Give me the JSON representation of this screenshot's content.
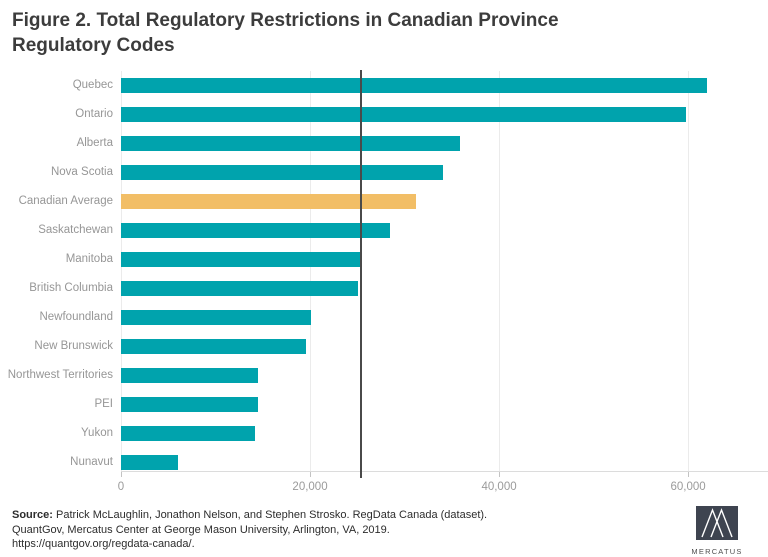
{
  "figure": {
    "title": "Figure 2. Total Regulatory Restrictions in Canadian Province Regulatory Codes"
  },
  "chart_data": {
    "type": "bar",
    "orientation": "horizontal",
    "title": "Figure 2. Total Regulatory Restrictions in Canadian Province Regulatory Codes",
    "categories": [
      "Quebec",
      "Ontario",
      "Alberta",
      "Nova Scotia",
      "Canadian Average",
      "Saskatchewan",
      "Manitoba",
      "British Columbia",
      "Newfoundland",
      "New Brunswick",
      "Northwest Territories",
      "PEI",
      "Yukon",
      "Nunavut"
    ],
    "values": [
      62000,
      59800,
      35900,
      34100,
      31200,
      28500,
      25500,
      25100,
      20100,
      19600,
      14500,
      14450,
      14200,
      6000
    ],
    "highlight_category": "Canadian Average",
    "bar_color": "#00a3ad",
    "highlight_color": "#f2be66",
    "reference_line": {
      "value": 25300,
      "color": "#4a4a4a",
      "label": ""
    },
    "xlim": [
      0,
      67400
    ],
    "xticks": [
      {
        "value": 0,
        "label": "0"
      },
      {
        "value": 20000,
        "label": "20,000"
      },
      {
        "value": 40000,
        "label": "40,000"
      },
      {
        "value": 60000,
        "label": "60,000"
      }
    ],
    "grid": "vertical",
    "legend": "none",
    "xlabel": "",
    "ylabel": ""
  },
  "footer": {
    "source_label": "Source:",
    "source_line1": " Patrick McLaughlin, Jonathon Nelson, and Stephen Strosko. RegData Canada (dataset).",
    "source_line2": "QuantGov, Mercatus Center at George Mason University, Arlington, VA, 2019.",
    "source_line3": "https://quantgov.org/regdata-canada/.",
    "logo_wordmark": "MERCATUS",
    "logo_color": "#3e4450"
  }
}
